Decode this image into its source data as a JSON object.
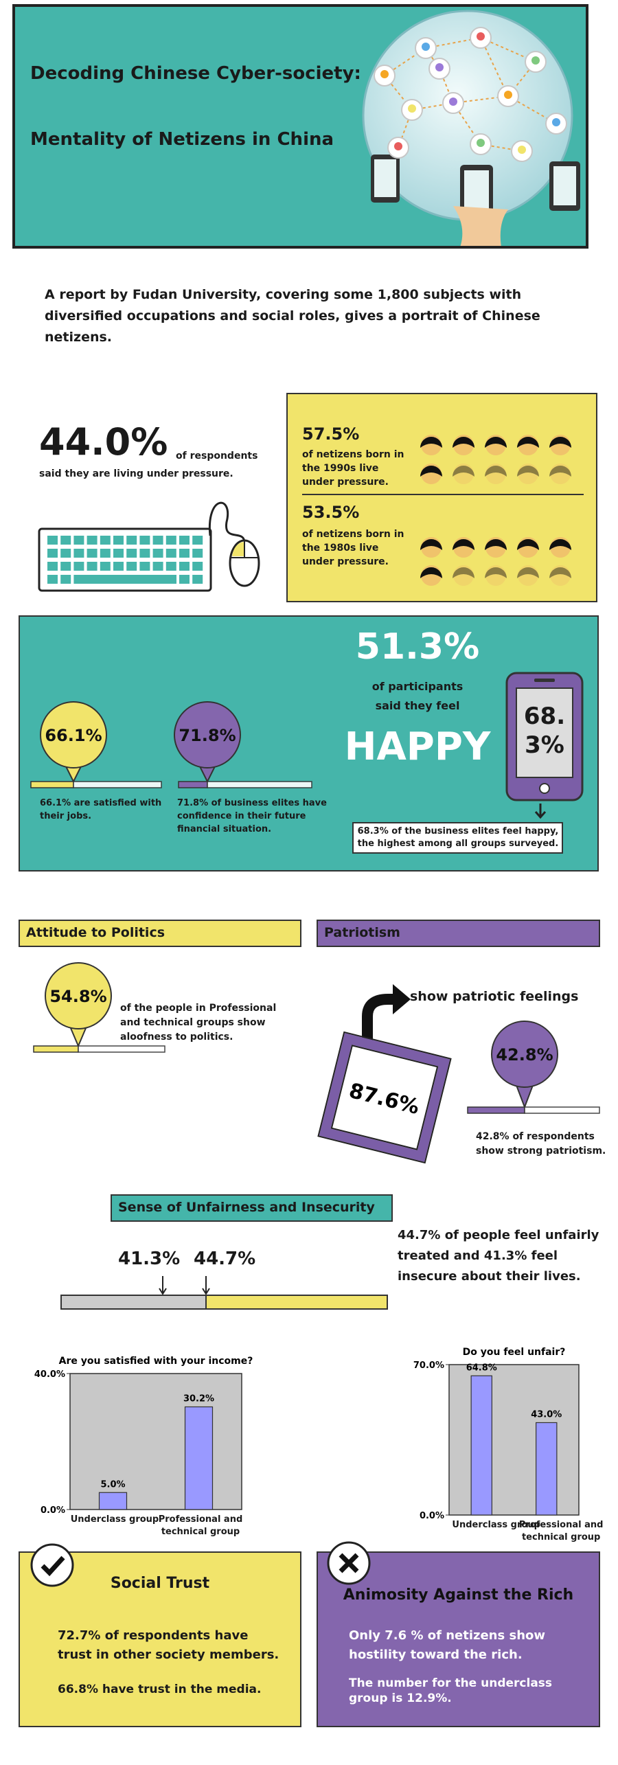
{
  "header": {
    "title_line1": "Decoding Chinese Cyber-society:",
    "title_line2": "Mentality of Netizens in China"
  },
  "intro": "A report by Fudan University, covering some 1,800 subjects with diversified occupations and social roles, gives a portrait of Chinese netizens.",
  "pressure": {
    "stat": "44.0%",
    "stat_note": "of respondents",
    "caption": "said they are living under pressure.",
    "groups": [
      {
        "stat": "57.5%",
        "caption": "of netizens born in the 1990s live under pressure."
      },
      {
        "stat": "53.5%",
        "caption": "of netizens born in the 1980s live under pressure."
      }
    ]
  },
  "happiness": {
    "stat": "51.3%",
    "caption_line1": "of participants",
    "caption_line2": "said they feel",
    "word": "HAPPY",
    "phone_stat": "68.3%",
    "phone_caption": "68.3% of the business elites feel happy, the highest among all groups surveyed.",
    "bubbles": [
      {
        "stat": "66.1%",
        "caption": "66.1% are satisfied with their jobs."
      },
      {
        "stat": "71.8%",
        "caption": "71.8% of business elites have confidence in their future financial situation."
      }
    ]
  },
  "politics": {
    "heading": "Attitude to Politics",
    "stat": "54.8%",
    "caption": "of the people in Professional and technical groups show aloofness to politics."
  },
  "patriotism": {
    "heading": "Patriotism",
    "headline": "show patriotic feelings",
    "stat": "87.6%",
    "bubble_stat": "42.8%",
    "bubble_caption": "42.8% of respondents show strong patriotism."
  },
  "unfairness": {
    "heading": "Sense of Unfairness and Insecurity",
    "markers": [
      "41.3%",
      "44.7%"
    ],
    "caption": "44.7% of people feel unfairly treated and 41.3% feel insecure about their lives."
  },
  "chart_data": [
    {
      "type": "bar",
      "title": "Are you satisfied with your income?",
      "categories": [
        "Underclass group",
        "Professional and technical group"
      ],
      "values": [
        5.0,
        30.2
      ],
      "value_labels": [
        "5.0%",
        "30.2%"
      ],
      "color": "#9999ff",
      "ylim": [
        0,
        40
      ],
      "yticks": [
        {
          "value": 0,
          "label": "0.0%"
        },
        {
          "value": 40,
          "label": "40.0%"
        }
      ]
    },
    {
      "type": "bar",
      "title": "Do you feel unfair?",
      "categories": [
        "Underclass group",
        "Professional and technical group"
      ],
      "values": [
        64.8,
        43.0
      ],
      "value_labels": [
        "64.8%",
        "43.0%"
      ],
      "color": "#9999ff",
      "ylim": [
        0,
        70
      ],
      "yticks": [
        {
          "value": 0,
          "label": "0.0%"
        },
        {
          "value": 70,
          "label": "70.0%"
        }
      ]
    }
  ],
  "social_trust": {
    "title": "Social Trust",
    "lines": [
      "72.7% of respondents have trust in other society members.",
      "66.8% have trust in the media."
    ]
  },
  "animosity": {
    "title": "Animosity Against the Rich",
    "lines": [
      "Only 7.6 % of netizens show hostility toward the rich.",
      "The number for the underclass group is 12.9%."
    ]
  }
}
